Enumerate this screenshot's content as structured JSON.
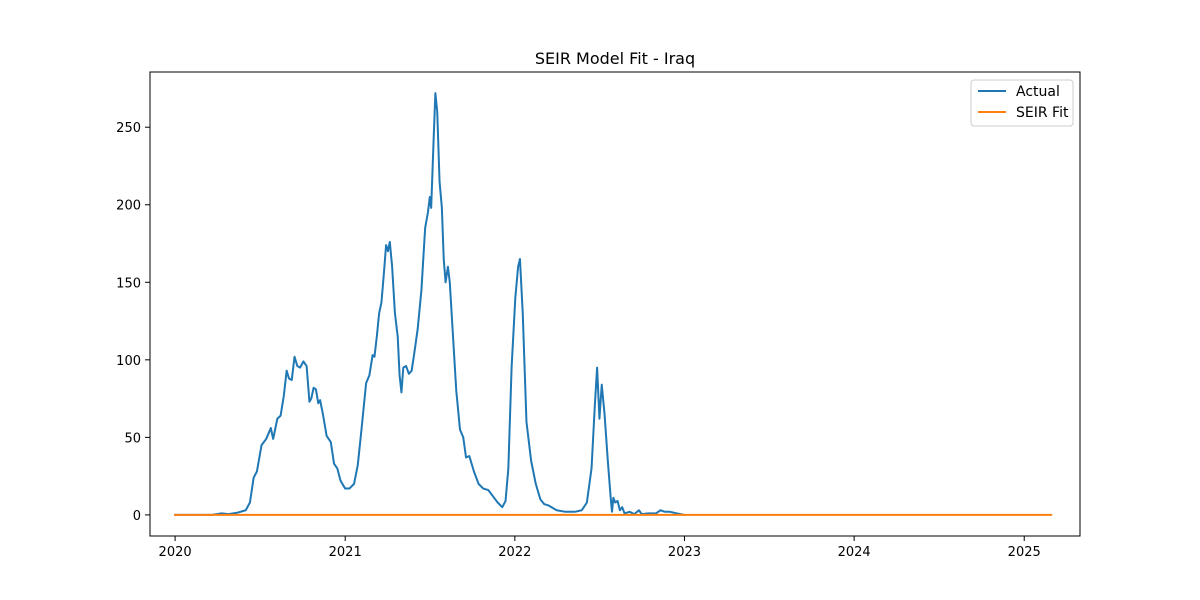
{
  "chart_data": {
    "type": "line",
    "title": "SEIR Model Fit - Iraq",
    "xlabel": "",
    "ylabel": "",
    "x_axis_type": "date",
    "xlim": [
      "2019-11-08",
      "2025-05-01"
    ],
    "ylim": [
      -13.6,
      285.6
    ],
    "x_ticks": [
      {
        "value": "2020-01-01",
        "label": "2020"
      },
      {
        "value": "2021-01-01",
        "label": "2021"
      },
      {
        "value": "2022-01-01",
        "label": "2022"
      },
      {
        "value": "2023-01-01",
        "label": "2023"
      },
      {
        "value": "2024-01-01",
        "label": "2024"
      },
      {
        "value": "2025-01-01",
        "label": "2025"
      }
    ],
    "y_ticks": [
      0,
      50,
      100,
      150,
      200,
      250
    ],
    "grid": false,
    "legend": {
      "placement": "top-right"
    },
    "series": [
      {
        "name": "Actual",
        "color": "#1f77b4",
        "points": [
          [
            "2020-01-01",
            0
          ],
          [
            "2020-03-20",
            0
          ],
          [
            "2020-04-10",
            1
          ],
          [
            "2020-04-25",
            0.5
          ],
          [
            "2020-05-15",
            1.5
          ],
          [
            "2020-06-01",
            3
          ],
          [
            "2020-06-10",
            8
          ],
          [
            "2020-06-18",
            24
          ],
          [
            "2020-06-25",
            28
          ],
          [
            "2020-07-05",
            45
          ],
          [
            "2020-07-15",
            49
          ],
          [
            "2020-07-25",
            56
          ],
          [
            "2020-07-30",
            49
          ],
          [
            "2020-08-08",
            62
          ],
          [
            "2020-08-15",
            64
          ],
          [
            "2020-08-22",
            77
          ],
          [
            "2020-08-28",
            93
          ],
          [
            "2020-09-02",
            88
          ],
          [
            "2020-09-08",
            87
          ],
          [
            "2020-09-14",
            102
          ],
          [
            "2020-09-20",
            96
          ],
          [
            "2020-09-26",
            95
          ],
          [
            "2020-10-03",
            99
          ],
          [
            "2020-10-10",
            96
          ],
          [
            "2020-10-16",
            73
          ],
          [
            "2020-10-20",
            75
          ],
          [
            "2020-10-25",
            82
          ],
          [
            "2020-10-30",
            81
          ],
          [
            "2020-11-04",
            72
          ],
          [
            "2020-11-08",
            74
          ],
          [
            "2020-11-14",
            65
          ],
          [
            "2020-11-22",
            51
          ],
          [
            "2020-12-01",
            47
          ],
          [
            "2020-12-08",
            33
          ],
          [
            "2020-12-15",
            30
          ],
          [
            "2020-12-22",
            22
          ],
          [
            "2021-01-01",
            17
          ],
          [
            "2021-01-10",
            17
          ],
          [
            "2021-01-20",
            20
          ],
          [
            "2021-01-28",
            32
          ],
          [
            "2021-02-05",
            55
          ],
          [
            "2021-02-15",
            85
          ],
          [
            "2021-02-22",
            90
          ],
          [
            "2021-03-01",
            103
          ],
          [
            "2021-03-05",
            102
          ],
          [
            "2021-03-10",
            115
          ],
          [
            "2021-03-15",
            130
          ],
          [
            "2021-03-20",
            137
          ],
          [
            "2021-03-25",
            155
          ],
          [
            "2021-03-30",
            174
          ],
          [
            "2021-04-03",
            170
          ],
          [
            "2021-04-07",
            176
          ],
          [
            "2021-04-12",
            160
          ],
          [
            "2021-04-18",
            130
          ],
          [
            "2021-04-24",
            115
          ],
          [
            "2021-04-28",
            90
          ],
          [
            "2021-05-02",
            79
          ],
          [
            "2021-05-06",
            95
          ],
          [
            "2021-05-12",
            96
          ],
          [
            "2021-05-18",
            91
          ],
          [
            "2021-05-24",
            93
          ],
          [
            "2021-05-30",
            105
          ],
          [
            "2021-06-06",
            120
          ],
          [
            "2021-06-14",
            145
          ],
          [
            "2021-06-22",
            185
          ],
          [
            "2021-06-28",
            195
          ],
          [
            "2021-07-02",
            205
          ],
          [
            "2021-07-05",
            198
          ],
          [
            "2021-07-10",
            240
          ],
          [
            "2021-07-14",
            272
          ],
          [
            "2021-07-18",
            260
          ],
          [
            "2021-07-23",
            215
          ],
          [
            "2021-07-28",
            198
          ],
          [
            "2021-08-01",
            165
          ],
          [
            "2021-08-05",
            150
          ],
          [
            "2021-08-10",
            160
          ],
          [
            "2021-08-14",
            150
          ],
          [
            "2021-08-20",
            120
          ],
          [
            "2021-08-28",
            80
          ],
          [
            "2021-09-05",
            55
          ],
          [
            "2021-09-12",
            50
          ],
          [
            "2021-09-18",
            37
          ],
          [
            "2021-09-25",
            38
          ],
          [
            "2021-10-05",
            28
          ],
          [
            "2021-10-15",
            20
          ],
          [
            "2021-10-25",
            17
          ],
          [
            "2021-11-05",
            16
          ],
          [
            "2021-11-15",
            12
          ],
          [
            "2021-11-25",
            8
          ],
          [
            "2021-12-05",
            5
          ],
          [
            "2021-12-12",
            9
          ],
          [
            "2021-12-18",
            30
          ],
          [
            "2021-12-25",
            95
          ],
          [
            "2022-01-02",
            140
          ],
          [
            "2022-01-08",
            160
          ],
          [
            "2022-01-12",
            165
          ],
          [
            "2022-01-18",
            130
          ],
          [
            "2022-01-26",
            60
          ],
          [
            "2022-02-05",
            35
          ],
          [
            "2022-02-15",
            20
          ],
          [
            "2022-02-25",
            10
          ],
          [
            "2022-03-05",
            7
          ],
          [
            "2022-03-15",
            6
          ],
          [
            "2022-04-01",
            3
          ],
          [
            "2022-04-20",
            2
          ],
          [
            "2022-05-10",
            2
          ],
          [
            "2022-05-25",
            3
          ],
          [
            "2022-06-05",
            8
          ],
          [
            "2022-06-15",
            30
          ],
          [
            "2022-06-22",
            70
          ],
          [
            "2022-06-27",
            95
          ],
          [
            "2022-07-02",
            62
          ],
          [
            "2022-07-07",
            84
          ],
          [
            "2022-07-13",
            65
          ],
          [
            "2022-07-20",
            35
          ],
          [
            "2022-07-26",
            12
          ],
          [
            "2022-07-29",
            2
          ],
          [
            "2022-08-01",
            11
          ],
          [
            "2022-08-05",
            8
          ],
          [
            "2022-08-10",
            9
          ],
          [
            "2022-08-15",
            3
          ],
          [
            "2022-08-20",
            5
          ],
          [
            "2022-08-25",
            1
          ],
          [
            "2022-09-05",
            2
          ],
          [
            "2022-09-15",
            0.5
          ],
          [
            "2022-09-25",
            3
          ],
          [
            "2022-10-01",
            0.5
          ],
          [
            "2022-10-15",
            1
          ],
          [
            "2022-11-01",
            1
          ],
          [
            "2022-11-10",
            3
          ],
          [
            "2022-11-20",
            2
          ],
          [
            "2022-12-01",
            2
          ],
          [
            "2022-12-15",
            1
          ],
          [
            "2023-01-01",
            0
          ]
        ]
      },
      {
        "name": "SEIR Fit",
        "color": "#ff7f0e",
        "points": [
          [
            "2020-01-01",
            0
          ],
          [
            "2025-02-28",
            0
          ]
        ]
      }
    ]
  }
}
